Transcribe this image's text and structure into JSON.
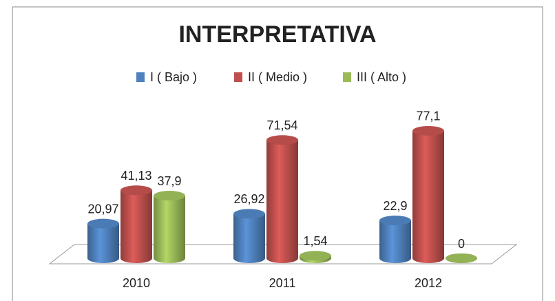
{
  "chart_data": {
    "type": "bar3d",
    "title": "INTERPRETATIVA",
    "categories": [
      "2010",
      "2011",
      "2012"
    ],
    "series": [
      {
        "name": "I ( Bajo )",
        "color": "#4f81bd",
        "values": [
          20.97,
          26.92,
          22.9
        ],
        "value_labels": [
          "20,97",
          "26,92",
          "22,9"
        ]
      },
      {
        "name": "II ( Medio )",
        "color": "#c0504d",
        "values": [
          41.13,
          71.54,
          77.1
        ],
        "value_labels": [
          "41,13",
          "71,54",
          "77,1"
        ]
      },
      {
        "name": "III ( Alto )",
        "color": "#9bbb59",
        "values": [
          37.9,
          1.54,
          0
        ],
        "value_labels": [
          "37,9",
          "1,54",
          "0"
        ]
      }
    ],
    "legend": "top"
  }
}
